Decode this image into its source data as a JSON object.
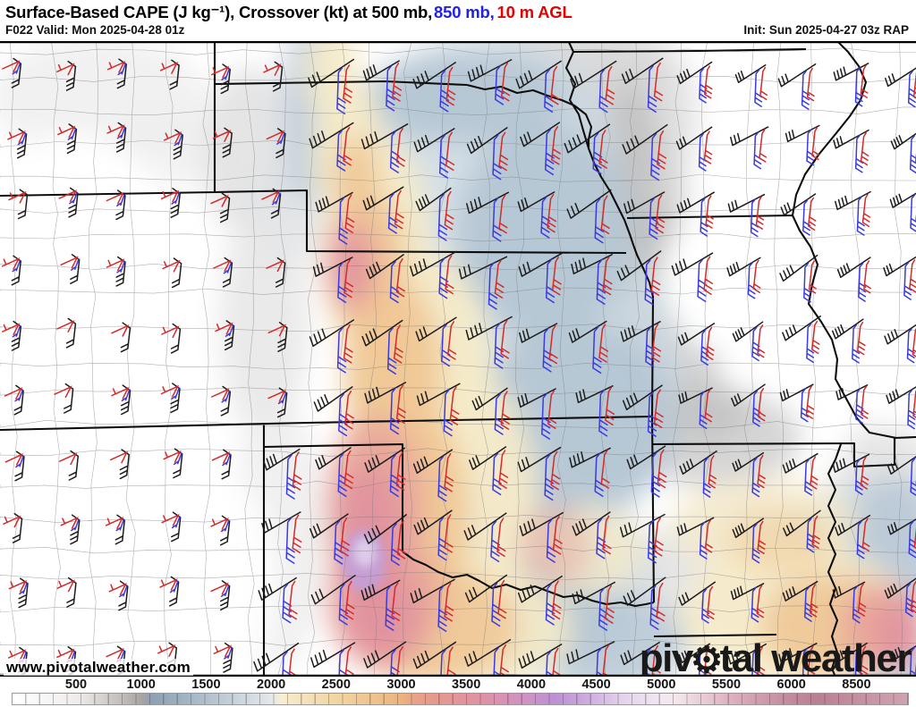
{
  "header": {
    "title_parts": [
      {
        "text": "Surface-Based CAPE (J kg⁻¹), Crossover (kt) at 500 mb,",
        "color": "#000000"
      },
      {
        "text": "850 mb,",
        "color": "#2222dd"
      },
      {
        "text": "10 m AGL",
        "color": "#e60000"
      }
    ],
    "subtitle": "F022 Valid: Mon 2025-04-28 01z",
    "init_label": "Init: Sun 2025-04-27 03z RAP"
  },
  "map": {
    "watermark": "www.pivotalweather.com",
    "logo": {
      "pre": "piv",
      "gear": "⚙",
      "post": "tal weather"
    },
    "barb_levels": [
      {
        "name": "500 mb",
        "color": "#1c1c1c"
      },
      {
        "name": "850 mb",
        "color": "#3a3ae0"
      },
      {
        "name": "10 m AGL",
        "color": "#d42a2a"
      }
    ]
  },
  "colorbar": {
    "units": "J kg⁻¹",
    "ticks": [
      "500",
      "1000",
      "1500",
      "2000",
      "2500",
      "3000",
      "3500",
      "4000",
      "4500",
      "5000",
      "5500",
      "6000",
      "8500"
    ],
    "gradient": [
      [
        0,
        "#ffffff"
      ],
      [
        7.2,
        "#efedeb"
      ],
      [
        12,
        "#c2bfbc"
      ],
      [
        14.4,
        "#a8a5a2"
      ],
      [
        15.5,
        "#8da0b4"
      ],
      [
        19,
        "#9fb2c2"
      ],
      [
        21.7,
        "#b0c0cc"
      ],
      [
        25,
        "#c8d4dc"
      ],
      [
        28.9,
        "#e2e8ec"
      ],
      [
        30,
        "#f7eed2"
      ],
      [
        33,
        "#f4e0b8"
      ],
      [
        36.2,
        "#f2d5a2"
      ],
      [
        40,
        "#efc48e"
      ],
      [
        43.4,
        "#ecb37e"
      ],
      [
        45,
        "#e9a187"
      ],
      [
        47,
        "#e69a8e"
      ],
      [
        50.6,
        "#e2939b"
      ],
      [
        54,
        "#dc92b0"
      ],
      [
        57.9,
        "#cd92c6"
      ],
      [
        60.5,
        "#bc90d5"
      ],
      [
        63,
        "#c6a3da"
      ],
      [
        65.1,
        "#d2b4e2"
      ],
      [
        68,
        "#e3d2ec"
      ],
      [
        72.4,
        "#f0e8f3"
      ],
      [
        74,
        "#f4e8ea"
      ],
      [
        77,
        "#e9cdd6"
      ],
      [
        79.6,
        "#e0b5c2"
      ],
      [
        83,
        "#d19fb0"
      ],
      [
        86.9,
        "#c28a9d"
      ],
      [
        90,
        "#bb7f92"
      ],
      [
        94.1,
        "#c48f9f"
      ],
      [
        100,
        "#cfa3b0"
      ]
    ]
  }
}
